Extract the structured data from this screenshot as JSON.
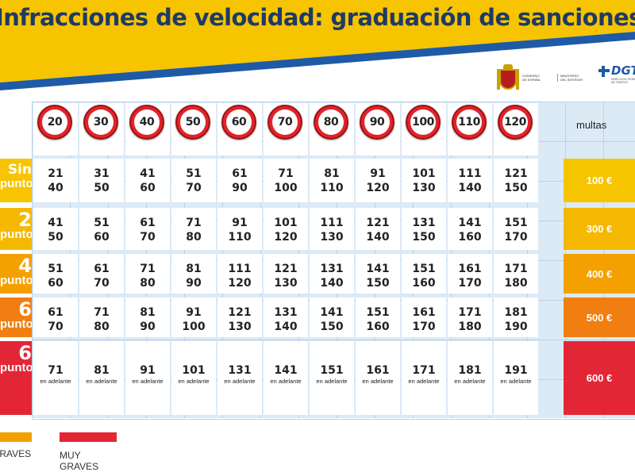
{
  "title": "Infracciones de velocidad: graduación de sanciones",
  "logos": {
    "gov_line1": "GOBIERNO",
    "gov_line2": "DE ESPAÑA",
    "ministry_line1": "MINISTERIO",
    "ministry_line2": "DEL INTERIOR",
    "dgt": "DGT",
    "dgt_sub": "DIRECCIÓN GENERAL DE TRÁFICO"
  },
  "multas_header": "multas",
  "speed_limits": [
    "20",
    "30",
    "40",
    "50",
    "60",
    "70",
    "80",
    "90",
    "100",
    "110",
    "120"
  ],
  "rows": [
    {
      "points_big": "Sin",
      "points_small": "puntos",
      "fine": "100 €",
      "color": "#f6c400",
      "ranges": [
        [
          "21",
          "40"
        ],
        [
          "31",
          "50"
        ],
        [
          "41",
          "60"
        ],
        [
          "51",
          "70"
        ],
        [
          "61",
          "90"
        ],
        [
          "71",
          "100"
        ],
        [
          "81",
          "110"
        ],
        [
          "91",
          "120"
        ],
        [
          "101",
          "130"
        ],
        [
          "111",
          "140"
        ],
        [
          "121",
          "150"
        ]
      ]
    },
    {
      "points_big": "2",
      "points_small": "puntos",
      "fine": "300 €",
      "color": "#f5b800",
      "ranges": [
        [
          "41",
          "50"
        ],
        [
          "51",
          "60"
        ],
        [
          "61",
          "70"
        ],
        [
          "71",
          "80"
        ],
        [
          "91",
          "110"
        ],
        [
          "101",
          "120"
        ],
        [
          "111",
          "130"
        ],
        [
          "121",
          "140"
        ],
        [
          "131",
          "150"
        ],
        [
          "141",
          "160"
        ],
        [
          "151",
          "170"
        ]
      ]
    },
    {
      "points_big": "4",
      "points_small": "puntos",
      "fine": "400 €",
      "color": "#f4a000",
      "ranges": [
        [
          "51",
          "60"
        ],
        [
          "61",
          "70"
        ],
        [
          "71",
          "80"
        ],
        [
          "81",
          "90"
        ],
        [
          "111",
          "120"
        ],
        [
          "121",
          "130"
        ],
        [
          "131",
          "140"
        ],
        [
          "141",
          "150"
        ],
        [
          "151",
          "160"
        ],
        [
          "161",
          "170"
        ],
        [
          "171",
          "180"
        ]
      ]
    },
    {
      "points_big": "6",
      "points_small": "puntos",
      "fine": "500 €",
      "color": "#f07e10",
      "ranges": [
        [
          "61",
          "70"
        ],
        [
          "71",
          "80"
        ],
        [
          "81",
          "90"
        ],
        [
          "91",
          "100"
        ],
        [
          "121",
          "130"
        ],
        [
          "131",
          "140"
        ],
        [
          "141",
          "150"
        ],
        [
          "151",
          "160"
        ],
        [
          "161",
          "170"
        ],
        [
          "171",
          "180"
        ],
        [
          "181",
          "190"
        ]
      ]
    },
    {
      "points_big": "6",
      "points_small": "puntos",
      "fine": "600 €",
      "color": "#e32636",
      "ranges": [
        [
          "71",
          "en adelante"
        ],
        [
          "81",
          "en adelante"
        ],
        [
          "91",
          "en adelante"
        ],
        [
          "101",
          "en adelante"
        ],
        [
          "131",
          "en adelante"
        ],
        [
          "141",
          "en adelante"
        ],
        [
          "151",
          "en adelante"
        ],
        [
          "161",
          "en adelante"
        ],
        [
          "171",
          "en adelante"
        ],
        [
          "181",
          "en adelante"
        ],
        [
          "191",
          "en adelante"
        ]
      ]
    }
  ],
  "legend": [
    {
      "label_line1": "GRAVES",
      "label_line2": "",
      "color": "#f4a000"
    },
    {
      "label_line1": "MUY",
      "label_line2": "GRAVES",
      "color": "#e32636"
    }
  ]
}
